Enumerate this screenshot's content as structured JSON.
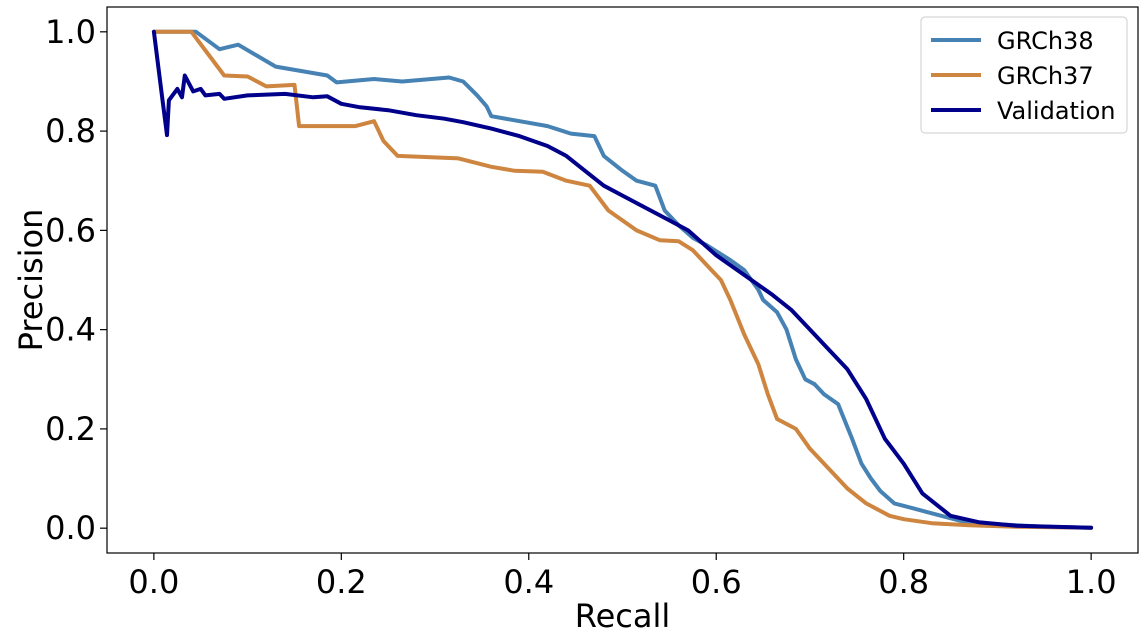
{
  "chart_data": {
    "type": "line",
    "title": "",
    "xlabel": "Recall",
    "ylabel": "Precision",
    "xlim": [
      -0.05,
      1.05
    ],
    "ylim": [
      -0.05,
      1.05
    ],
    "xticks": [
      0.0,
      0.2,
      0.4,
      0.6,
      0.8,
      1.0
    ],
    "xtick_labels": [
      "0.0",
      "0.2",
      "0.4",
      "0.6",
      "0.8",
      "1.0"
    ],
    "yticks": [
      0.0,
      0.2,
      0.4,
      0.6,
      0.8,
      1.0
    ],
    "ytick_labels": [
      "0.0",
      "0.2",
      "0.4",
      "0.6",
      "0.8",
      "1.0"
    ],
    "grid": false,
    "legend_position": "top-right",
    "series": [
      {
        "name": "GRCh38",
        "color": "#4682b4",
        "points": [
          [
            0.0,
            1.0
          ],
          [
            0.045,
            1.0
          ],
          [
            0.07,
            0.965
          ],
          [
            0.09,
            0.974
          ],
          [
            0.13,
            0.93
          ],
          [
            0.185,
            0.912
          ],
          [
            0.195,
            0.898
          ],
          [
            0.235,
            0.905
          ],
          [
            0.265,
            0.9
          ],
          [
            0.315,
            0.908
          ],
          [
            0.33,
            0.9
          ],
          [
            0.345,
            0.872
          ],
          [
            0.355,
            0.85
          ],
          [
            0.36,
            0.83
          ],
          [
            0.42,
            0.81
          ],
          [
            0.445,
            0.795
          ],
          [
            0.47,
            0.79
          ],
          [
            0.48,
            0.75
          ],
          [
            0.5,
            0.72
          ],
          [
            0.515,
            0.7
          ],
          [
            0.535,
            0.69
          ],
          [
            0.545,
            0.64
          ],
          [
            0.56,
            0.61
          ],
          [
            0.575,
            0.585
          ],
          [
            0.59,
            0.57
          ],
          [
            0.615,
            0.54
          ],
          [
            0.63,
            0.52
          ],
          [
            0.645,
            0.48
          ],
          [
            0.65,
            0.46
          ],
          [
            0.665,
            0.435
          ],
          [
            0.675,
            0.4
          ],
          [
            0.685,
            0.34
          ],
          [
            0.695,
            0.3
          ],
          [
            0.705,
            0.29
          ],
          [
            0.715,
            0.27
          ],
          [
            0.73,
            0.25
          ],
          [
            0.745,
            0.18
          ],
          [
            0.755,
            0.13
          ],
          [
            0.765,
            0.1
          ],
          [
            0.775,
            0.075
          ],
          [
            0.79,
            0.05
          ],
          [
            0.81,
            0.04
          ],
          [
            0.83,
            0.03
          ],
          [
            0.86,
            0.015
          ],
          [
            0.9,
            0.008
          ],
          [
            0.95,
            0.003
          ],
          [
            1.0,
            0.001
          ]
        ]
      },
      {
        "name": "GRCh37",
        "color": "#cd853f",
        "points": [
          [
            0.0,
            1.0
          ],
          [
            0.04,
            1.0
          ],
          [
            0.075,
            0.912
          ],
          [
            0.1,
            0.91
          ],
          [
            0.12,
            0.89
          ],
          [
            0.15,
            0.893
          ],
          [
            0.155,
            0.81
          ],
          [
            0.215,
            0.81
          ],
          [
            0.235,
            0.82
          ],
          [
            0.245,
            0.78
          ],
          [
            0.26,
            0.75
          ],
          [
            0.325,
            0.745
          ],
          [
            0.36,
            0.728
          ],
          [
            0.385,
            0.72
          ],
          [
            0.415,
            0.718
          ],
          [
            0.44,
            0.7
          ],
          [
            0.465,
            0.69
          ],
          [
            0.485,
            0.64
          ],
          [
            0.515,
            0.6
          ],
          [
            0.54,
            0.58
          ],
          [
            0.56,
            0.578
          ],
          [
            0.575,
            0.56
          ],
          [
            0.595,
            0.52
          ],
          [
            0.605,
            0.5
          ],
          [
            0.615,
            0.46
          ],
          [
            0.63,
            0.39
          ],
          [
            0.645,
            0.33
          ],
          [
            0.655,
            0.27
          ],
          [
            0.665,
            0.22
          ],
          [
            0.685,
            0.2
          ],
          [
            0.7,
            0.16
          ],
          [
            0.72,
            0.12
          ],
          [
            0.74,
            0.08
          ],
          [
            0.76,
            0.05
          ],
          [
            0.785,
            0.025
          ],
          [
            0.8,
            0.018
          ],
          [
            0.83,
            0.01
          ],
          [
            0.87,
            0.006
          ],
          [
            0.92,
            0.003
          ],
          [
            1.0,
            0.001
          ]
        ]
      },
      {
        "name": "Validation",
        "color": "#00008b",
        "points": [
          [
            0.0,
            1.0
          ],
          [
            0.008,
            0.88
          ],
          [
            0.014,
            0.792
          ],
          [
            0.016,
            0.862
          ],
          [
            0.025,
            0.885
          ],
          [
            0.03,
            0.868
          ],
          [
            0.033,
            0.912
          ],
          [
            0.042,
            0.88
          ],
          [
            0.05,
            0.885
          ],
          [
            0.055,
            0.872
          ],
          [
            0.07,
            0.875
          ],
          [
            0.075,
            0.865
          ],
          [
            0.1,
            0.872
          ],
          [
            0.14,
            0.875
          ],
          [
            0.17,
            0.868
          ],
          [
            0.185,
            0.87
          ],
          [
            0.2,
            0.855
          ],
          [
            0.22,
            0.848
          ],
          [
            0.25,
            0.842
          ],
          [
            0.28,
            0.832
          ],
          [
            0.31,
            0.825
          ],
          [
            0.33,
            0.818
          ],
          [
            0.36,
            0.805
          ],
          [
            0.39,
            0.79
          ],
          [
            0.42,
            0.77
          ],
          [
            0.44,
            0.75
          ],
          [
            0.46,
            0.72
          ],
          [
            0.48,
            0.69
          ],
          [
            0.5,
            0.67
          ],
          [
            0.52,
            0.65
          ],
          [
            0.55,
            0.62
          ],
          [
            0.57,
            0.6
          ],
          [
            0.6,
            0.55
          ],
          [
            0.63,
            0.51
          ],
          [
            0.66,
            0.47
          ],
          [
            0.68,
            0.44
          ],
          [
            0.7,
            0.4
          ],
          [
            0.72,
            0.36
          ],
          [
            0.74,
            0.32
          ],
          [
            0.76,
            0.26
          ],
          [
            0.78,
            0.18
          ],
          [
            0.8,
            0.13
          ],
          [
            0.82,
            0.07
          ],
          [
            0.85,
            0.025
          ],
          [
            0.88,
            0.012
          ],
          [
            0.92,
            0.005
          ],
          [
            1.0,
            0.001
          ]
        ]
      }
    ]
  }
}
